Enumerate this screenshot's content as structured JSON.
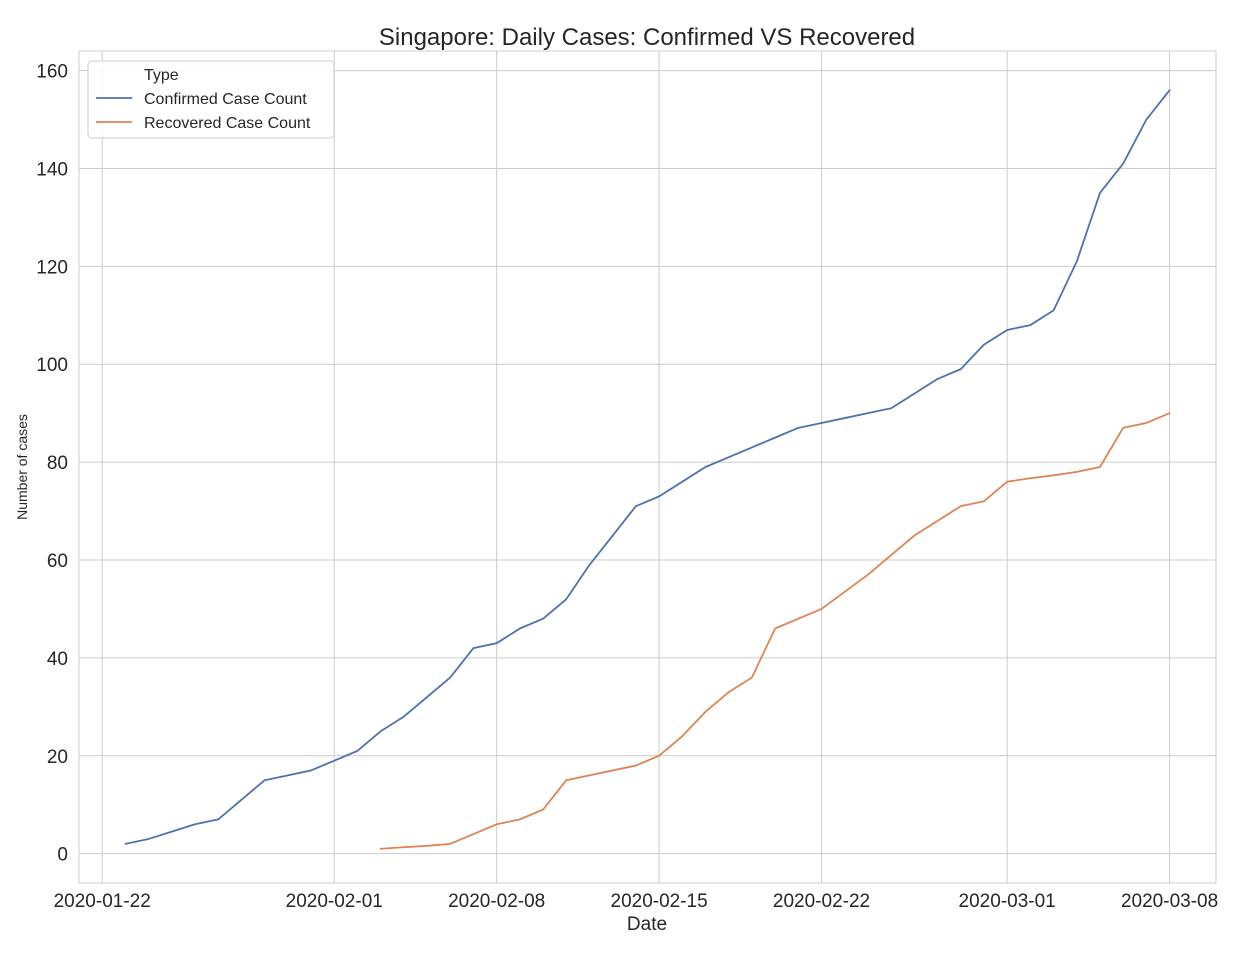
{
  "chart_data": {
    "type": "line",
    "title": "Singapore: Daily Cases: Confirmed VS Recovered",
    "xlabel": "Date",
    "ylabel": "Number of cases",
    "xlim": [
      "2020-01-21",
      "2020-03-10"
    ],
    "ylim": [
      -6,
      164
    ],
    "x_ticks": [
      "2020-01-22",
      "2020-02-01",
      "2020-02-08",
      "2020-02-15",
      "2020-02-22",
      "2020-03-01",
      "2020-03-08"
    ],
    "y_ticks": [
      0,
      20,
      40,
      60,
      80,
      100,
      120,
      140,
      160
    ],
    "grid": true,
    "legend": {
      "title": "Type",
      "placement": "top-left"
    },
    "series": [
      {
        "name": "Confirmed Case Count",
        "color": "#4c72b0",
        "points": [
          [
            "2020-01-23",
            2
          ],
          [
            "2020-01-24",
            3
          ],
          [
            "2020-01-25",
            4.5
          ],
          [
            "2020-01-26",
            6
          ],
          [
            "2020-01-27",
            7
          ],
          [
            "2020-01-28",
            11
          ],
          [
            "2020-01-29",
            15
          ],
          [
            "2020-01-30",
            16
          ],
          [
            "2020-01-31",
            17
          ],
          [
            "2020-02-01",
            19
          ],
          [
            "2020-02-02",
            21
          ],
          [
            "2020-02-03",
            25
          ],
          [
            "2020-02-04",
            28
          ],
          [
            "2020-02-05",
            32
          ],
          [
            "2020-02-06",
            36
          ],
          [
            "2020-02-07",
            42
          ],
          [
            "2020-02-08",
            43
          ],
          [
            "2020-02-09",
            46
          ],
          [
            "2020-02-10",
            48
          ],
          [
            "2020-02-11",
            52
          ],
          [
            "2020-02-12",
            59
          ],
          [
            "2020-02-13",
            65
          ],
          [
            "2020-02-14",
            71
          ],
          [
            "2020-02-15",
            73
          ],
          [
            "2020-02-16",
            76
          ],
          [
            "2020-02-17",
            79
          ],
          [
            "2020-02-18",
            81
          ],
          [
            "2020-02-19",
            83
          ],
          [
            "2020-02-20",
            85
          ],
          [
            "2020-02-21",
            87
          ],
          [
            "2020-02-22",
            88
          ],
          [
            "2020-02-23",
            89
          ],
          [
            "2020-02-24",
            90
          ],
          [
            "2020-02-25",
            91
          ],
          [
            "2020-02-26",
            94
          ],
          [
            "2020-02-27",
            97
          ],
          [
            "2020-02-28",
            99
          ],
          [
            "2020-02-29",
            104
          ],
          [
            "2020-03-01",
            107
          ],
          [
            "2020-03-02",
            108
          ],
          [
            "2020-03-03",
            111
          ],
          [
            "2020-03-04",
            121
          ],
          [
            "2020-03-05",
            135
          ],
          [
            "2020-03-06",
            141
          ],
          [
            "2020-03-07",
            150
          ],
          [
            "2020-03-08",
            156
          ]
        ]
      },
      {
        "name": "Recovered Case Count",
        "color": "#dd8452",
        "points": [
          [
            "2020-02-03",
            1
          ],
          [
            "2020-02-04",
            1.3
          ],
          [
            "2020-02-05",
            1.6
          ],
          [
            "2020-02-06",
            2
          ],
          [
            "2020-02-07",
            4
          ],
          [
            "2020-02-08",
            6
          ],
          [
            "2020-02-09",
            7
          ],
          [
            "2020-02-10",
            9
          ],
          [
            "2020-02-11",
            15
          ],
          [
            "2020-02-12",
            16
          ],
          [
            "2020-02-13",
            17
          ],
          [
            "2020-02-14",
            18
          ],
          [
            "2020-02-15",
            20
          ],
          [
            "2020-02-16",
            24
          ],
          [
            "2020-02-17",
            29
          ],
          [
            "2020-02-18",
            33
          ],
          [
            "2020-02-19",
            36
          ],
          [
            "2020-02-20",
            46
          ],
          [
            "2020-02-21",
            48
          ],
          [
            "2020-02-22",
            50
          ],
          [
            "2020-02-23",
            53.5
          ],
          [
            "2020-02-24",
            57
          ],
          [
            "2020-02-25",
            61
          ],
          [
            "2020-02-26",
            65
          ],
          [
            "2020-02-27",
            68
          ],
          [
            "2020-02-28",
            71
          ],
          [
            "2020-02-29",
            72
          ],
          [
            "2020-03-01",
            76
          ],
          [
            "2020-03-02",
            76.7
          ],
          [
            "2020-03-03",
            77.3
          ],
          [
            "2020-03-04",
            78
          ],
          [
            "2020-03-05",
            79
          ],
          [
            "2020-03-06",
            87
          ],
          [
            "2020-03-07",
            88
          ],
          [
            "2020-03-08",
            90
          ]
        ]
      }
    ]
  }
}
